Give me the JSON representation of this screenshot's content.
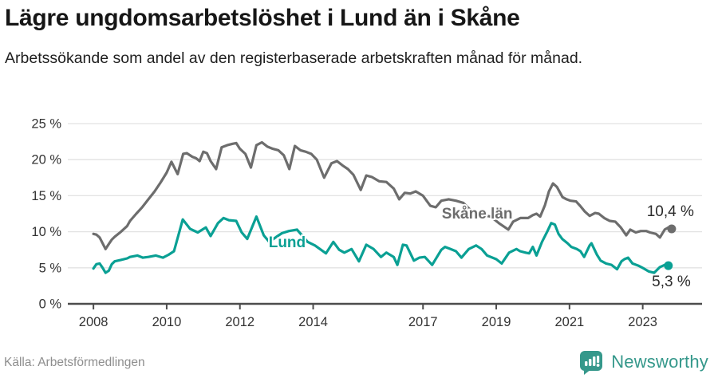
{
  "header": {
    "title": "Lägre ungdomsarbetslöshet i Lund än i Skåne",
    "subtitle": "Arbetssökande som andel av den registerbaserade arbetskraften månad för månad."
  },
  "chart_data": {
    "type": "line",
    "title": "Lägre ungdomsarbetslöshet i Lund än i Skåne",
    "xlabel": "",
    "ylabel": "",
    "unit": "%",
    "grid": "horizontal",
    "legend_position": "direct-labels-on-lines",
    "xlim": [
      2007.3,
      2024.62
    ],
    "ylim": [
      0,
      25
    ],
    "y_ticks": [
      0,
      5,
      10,
      15,
      20,
      25
    ],
    "y_tick_suffix": " %",
    "x_ticks": [
      2008,
      2010,
      2012,
      2014,
      2017,
      2019,
      2021,
      2023
    ],
    "series": [
      {
        "name": "Skåne län",
        "color": "#6d6d6d",
        "end_label": "10,4 %",
        "end_label_position": "above",
        "label_pos": {
          "x": 2018.48,
          "y": 12.5
        },
        "points": [
          [
            2008.0,
            9.7
          ],
          [
            2008.08,
            9.6
          ],
          [
            2008.17,
            9.2
          ],
          [
            2008.33,
            7.6
          ],
          [
            2008.42,
            8.3
          ],
          [
            2008.5,
            8.9
          ],
          [
            2008.58,
            9.3
          ],
          [
            2008.75,
            10.0
          ],
          [
            2008.92,
            10.8
          ],
          [
            2009.0,
            11.5
          ],
          [
            2009.17,
            12.5
          ],
          [
            2009.33,
            13.4
          ],
          [
            2009.5,
            14.5
          ],
          [
            2009.67,
            15.6
          ],
          [
            2009.83,
            16.8
          ],
          [
            2010.0,
            18.2
          ],
          [
            2010.13,
            19.7
          ],
          [
            2010.3,
            18.0
          ],
          [
            2010.45,
            20.8
          ],
          [
            2010.55,
            20.9
          ],
          [
            2010.7,
            20.4
          ],
          [
            2010.8,
            20.2
          ],
          [
            2010.9,
            19.8
          ],
          [
            2011.0,
            21.1
          ],
          [
            2011.1,
            20.9
          ],
          [
            2011.2,
            19.8
          ],
          [
            2011.35,
            18.7
          ],
          [
            2011.5,
            21.7
          ],
          [
            2011.65,
            22.0
          ],
          [
            2011.8,
            22.2
          ],
          [
            2011.9,
            22.3
          ],
          [
            2012.0,
            21.5
          ],
          [
            2012.15,
            20.8
          ],
          [
            2012.3,
            18.9
          ],
          [
            2012.45,
            22.0
          ],
          [
            2012.6,
            22.4
          ],
          [
            2012.75,
            21.8
          ],
          [
            2012.9,
            21.5
          ],
          [
            2013.05,
            21.3
          ],
          [
            2013.2,
            20.6
          ],
          [
            2013.35,
            18.7
          ],
          [
            2013.5,
            21.9
          ],
          [
            2013.65,
            21.3
          ],
          [
            2013.8,
            21.1
          ],
          [
            2013.95,
            20.8
          ],
          [
            2014.1,
            20.0
          ],
          [
            2014.3,
            17.5
          ],
          [
            2014.5,
            19.5
          ],
          [
            2014.65,
            19.8
          ],
          [
            2014.8,
            19.2
          ],
          [
            2014.95,
            18.7
          ],
          [
            2015.1,
            17.9
          ],
          [
            2015.3,
            15.8
          ],
          [
            2015.45,
            17.8
          ],
          [
            2015.6,
            17.6
          ],
          [
            2015.8,
            17.0
          ],
          [
            2016.0,
            16.9
          ],
          [
            2016.2,
            16.0
          ],
          [
            2016.35,
            14.5
          ],
          [
            2016.5,
            15.4
          ],
          [
            2016.65,
            15.3
          ],
          [
            2016.8,
            15.6
          ],
          [
            2017.0,
            15.0
          ],
          [
            2017.2,
            13.6
          ],
          [
            2017.35,
            13.4
          ],
          [
            2017.5,
            14.3
          ],
          [
            2017.7,
            14.5
          ],
          [
            2017.9,
            14.3
          ],
          [
            2018.1,
            14.0
          ],
          [
            2018.3,
            13.0
          ],
          [
            2018.45,
            12.6
          ],
          [
            2018.63,
            12.3
          ],
          [
            2018.85,
            12.1
          ],
          [
            2019.07,
            11.2
          ],
          [
            2019.33,
            10.3
          ],
          [
            2019.46,
            11.4
          ],
          [
            2019.66,
            11.9
          ],
          [
            2019.87,
            11.9
          ],
          [
            2020.0,
            12.3
          ],
          [
            2020.1,
            12.5
          ],
          [
            2020.2,
            12.1
          ],
          [
            2020.33,
            13.7
          ],
          [
            2020.44,
            15.6
          ],
          [
            2020.55,
            16.7
          ],
          [
            2020.66,
            16.2
          ],
          [
            2020.81,
            14.8
          ],
          [
            2020.92,
            14.5
          ],
          [
            2021.03,
            14.3
          ],
          [
            2021.18,
            14.2
          ],
          [
            2021.29,
            13.6
          ],
          [
            2021.42,
            12.8
          ],
          [
            2021.55,
            12.2
          ],
          [
            2021.7,
            12.6
          ],
          [
            2021.8,
            12.5
          ],
          [
            2021.95,
            11.9
          ],
          [
            2022.1,
            11.5
          ],
          [
            2022.25,
            11.4
          ],
          [
            2022.4,
            10.6
          ],
          [
            2022.55,
            9.5
          ],
          [
            2022.66,
            10.3
          ],
          [
            2022.81,
            9.9
          ],
          [
            2022.95,
            10.1
          ],
          [
            2023.1,
            10.1
          ],
          [
            2023.2,
            9.9
          ],
          [
            2023.36,
            9.7
          ],
          [
            2023.47,
            9.2
          ],
          [
            2023.6,
            10.3
          ],
          [
            2023.7,
            10.6
          ],
          [
            2023.79,
            10.4
          ]
        ]
      },
      {
        "name": "Lund",
        "color": "#0aa094",
        "end_label": "5,3 %",
        "end_label_position": "below",
        "label_pos": {
          "x": 2013.29,
          "y": 8.5
        },
        "points": [
          [
            2008.0,
            4.9
          ],
          [
            2008.08,
            5.5
          ],
          [
            2008.17,
            5.6
          ],
          [
            2008.25,
            5.0
          ],
          [
            2008.33,
            4.3
          ],
          [
            2008.42,
            4.6
          ],
          [
            2008.5,
            5.5
          ],
          [
            2008.58,
            5.9
          ],
          [
            2008.75,
            6.1
          ],
          [
            2008.92,
            6.3
          ],
          [
            2009.0,
            6.5
          ],
          [
            2009.2,
            6.7
          ],
          [
            2009.35,
            6.4
          ],
          [
            2009.5,
            6.5
          ],
          [
            2009.7,
            6.7
          ],
          [
            2009.9,
            6.4
          ],
          [
            2010.05,
            6.8
          ],
          [
            2010.2,
            7.3
          ],
          [
            2010.44,
            11.7
          ],
          [
            2010.64,
            10.4
          ],
          [
            2010.85,
            9.9
          ],
          [
            2011.07,
            10.6
          ],
          [
            2011.2,
            9.4
          ],
          [
            2011.4,
            11.2
          ],
          [
            2011.55,
            11.9
          ],
          [
            2011.7,
            11.6
          ],
          [
            2011.9,
            11.5
          ],
          [
            2012.05,
            9.9
          ],
          [
            2012.2,
            9.0
          ],
          [
            2012.45,
            12.1
          ],
          [
            2012.65,
            9.5
          ],
          [
            2012.8,
            8.6
          ],
          [
            2013.0,
            9.3
          ],
          [
            2013.15,
            9.8
          ],
          [
            2013.34,
            10.1
          ],
          [
            2013.56,
            10.3
          ],
          [
            2013.85,
            8.6
          ],
          [
            2014.05,
            8.1
          ],
          [
            2014.35,
            7.0
          ],
          [
            2014.55,
            8.6
          ],
          [
            2014.71,
            7.5
          ],
          [
            2014.85,
            7.1
          ],
          [
            2015.05,
            7.6
          ],
          [
            2015.25,
            5.9
          ],
          [
            2015.45,
            8.2
          ],
          [
            2015.65,
            7.6
          ],
          [
            2015.85,
            6.5
          ],
          [
            2016.0,
            7.1
          ],
          [
            2016.2,
            6.5
          ],
          [
            2016.3,
            5.4
          ],
          [
            2016.45,
            8.2
          ],
          [
            2016.55,
            8.1
          ],
          [
            2016.75,
            6.0
          ],
          [
            2016.9,
            6.4
          ],
          [
            2017.05,
            6.5
          ],
          [
            2017.25,
            5.4
          ],
          [
            2017.5,
            7.5
          ],
          [
            2017.6,
            7.9
          ],
          [
            2017.75,
            7.6
          ],
          [
            2017.9,
            7.3
          ],
          [
            2018.05,
            6.4
          ],
          [
            2018.25,
            7.6
          ],
          [
            2018.45,
            8.1
          ],
          [
            2018.6,
            7.6
          ],
          [
            2018.75,
            6.7
          ],
          [
            2018.85,
            6.5
          ],
          [
            2019.0,
            6.2
          ],
          [
            2019.15,
            5.6
          ],
          [
            2019.35,
            7.1
          ],
          [
            2019.55,
            7.6
          ],
          [
            2019.65,
            7.3
          ],
          [
            2019.8,
            7.1
          ],
          [
            2019.9,
            7.0
          ],
          [
            2020.0,
            7.9
          ],
          [
            2020.1,
            6.7
          ],
          [
            2020.25,
            8.6
          ],
          [
            2020.4,
            10.1
          ],
          [
            2020.5,
            11.2
          ],
          [
            2020.6,
            11.0
          ],
          [
            2020.7,
            9.7
          ],
          [
            2020.8,
            9.0
          ],
          [
            2020.95,
            8.4
          ],
          [
            2021.05,
            7.9
          ],
          [
            2021.2,
            7.6
          ],
          [
            2021.3,
            7.3
          ],
          [
            2021.4,
            6.5
          ],
          [
            2021.55,
            8.1
          ],
          [
            2021.6,
            8.4
          ],
          [
            2021.75,
            6.8
          ],
          [
            2021.85,
            6.0
          ],
          [
            2022.0,
            5.6
          ],
          [
            2022.15,
            5.4
          ],
          [
            2022.3,
            4.8
          ],
          [
            2022.42,
            5.9
          ],
          [
            2022.5,
            6.2
          ],
          [
            2022.6,
            6.4
          ],
          [
            2022.72,
            5.6
          ],
          [
            2022.88,
            5.3
          ],
          [
            2023.03,
            4.9
          ],
          [
            2023.16,
            4.5
          ],
          [
            2023.31,
            4.3
          ],
          [
            2023.47,
            5.1
          ],
          [
            2023.6,
            5.4
          ],
          [
            2023.7,
            5.3
          ]
        ]
      }
    ]
  },
  "footer": {
    "source": "Källa: Arbetsförmedlingen",
    "brand": "Newsworthy",
    "brand_icon": "bar-chart-speech-bubble-icon"
  },
  "colors": {
    "line_gray": "#6d6d6d",
    "line_teal": "#0aa094",
    "brand_teal": "#35988b",
    "gridline": "#e2e2e2",
    "axis": "#4d4d4d",
    "tick_label": "#333333",
    "end_label": "#2b2b2b",
    "source_text": "#8e8e8e"
  }
}
